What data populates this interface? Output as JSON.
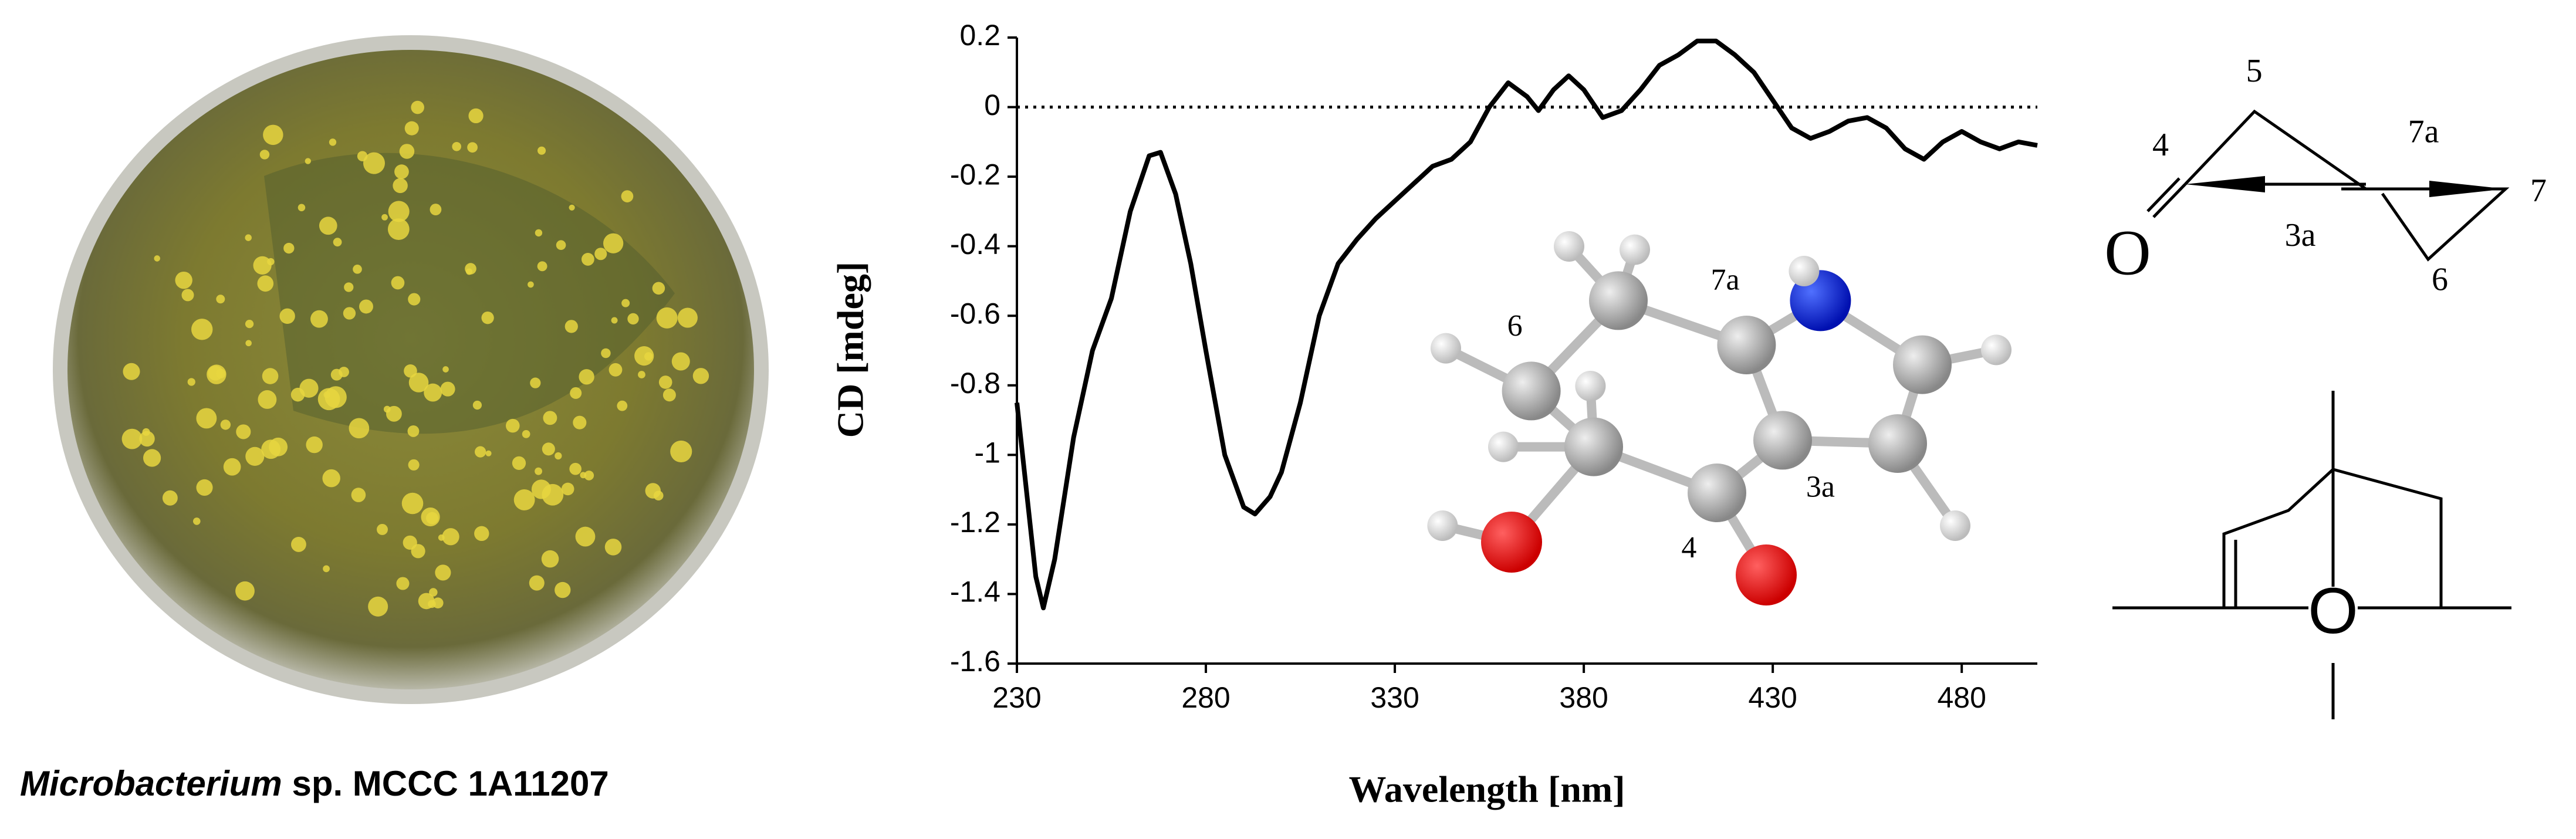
{
  "caption": {
    "italic": "Microbacterium",
    "rest": " sp. MCCC 1A11207"
  },
  "chart_data": {
    "type": "line",
    "xlabel": "Wavelength [nm]",
    "ylabel": "CD [mdeg]",
    "xlim": [
      230,
      500
    ],
    "ylim": [
      -1.6,
      0.2
    ],
    "xticks": [
      230,
      280,
      330,
      380,
      430,
      480
    ],
    "yticks": [
      0.2,
      0,
      -0.2,
      -0.4,
      -0.6,
      -0.8,
      -1,
      -1.2,
      -1.4,
      -1.6
    ],
    "hline": 0,
    "series": [
      {
        "name": "CD",
        "color": "#000000",
        "x": [
          230,
          232,
          235,
          237,
          240,
          245,
          250,
          255,
          260,
          265,
          268,
          272,
          276,
          280,
          285,
          290,
          293,
          297,
          300,
          305,
          310,
          315,
          320,
          325,
          330,
          335,
          340,
          345,
          350,
          355,
          360,
          365,
          368,
          372,
          376,
          380,
          385,
          390,
          395,
          400,
          405,
          410,
          415,
          420,
          425,
          430,
          435,
          440,
          445,
          450,
          455,
          460,
          465,
          470,
          475,
          480,
          485,
          490,
          495,
          500
        ],
        "values": [
          -0.85,
          -1.05,
          -1.35,
          -1.44,
          -1.3,
          -0.95,
          -0.7,
          -0.55,
          -0.3,
          -0.14,
          -0.13,
          -0.25,
          -0.45,
          -0.7,
          -1.0,
          -1.15,
          -1.17,
          -1.12,
          -1.05,
          -0.85,
          -0.6,
          -0.45,
          -0.38,
          -0.32,
          -0.27,
          -0.22,
          -0.17,
          -0.15,
          -0.1,
          0.0,
          0.07,
          0.03,
          -0.01,
          0.05,
          0.09,
          0.05,
          -0.03,
          -0.01,
          0.05,
          0.12,
          0.15,
          0.19,
          0.19,
          0.15,
          0.1,
          0.02,
          -0.06,
          -0.09,
          -0.07,
          -0.04,
          -0.03,
          -0.06,
          -0.12,
          -0.15,
          -0.1,
          -0.07,
          -0.1,
          -0.12,
          -0.1,
          -0.11
        ]
      }
    ]
  },
  "molecule": {
    "labels": [
      "6",
      "7a",
      "3a",
      "4"
    ]
  },
  "diagram": {
    "labels": [
      "5",
      "4",
      "7a",
      "7",
      "3a",
      "6",
      "O"
    ],
    "bottom_label": "O"
  }
}
